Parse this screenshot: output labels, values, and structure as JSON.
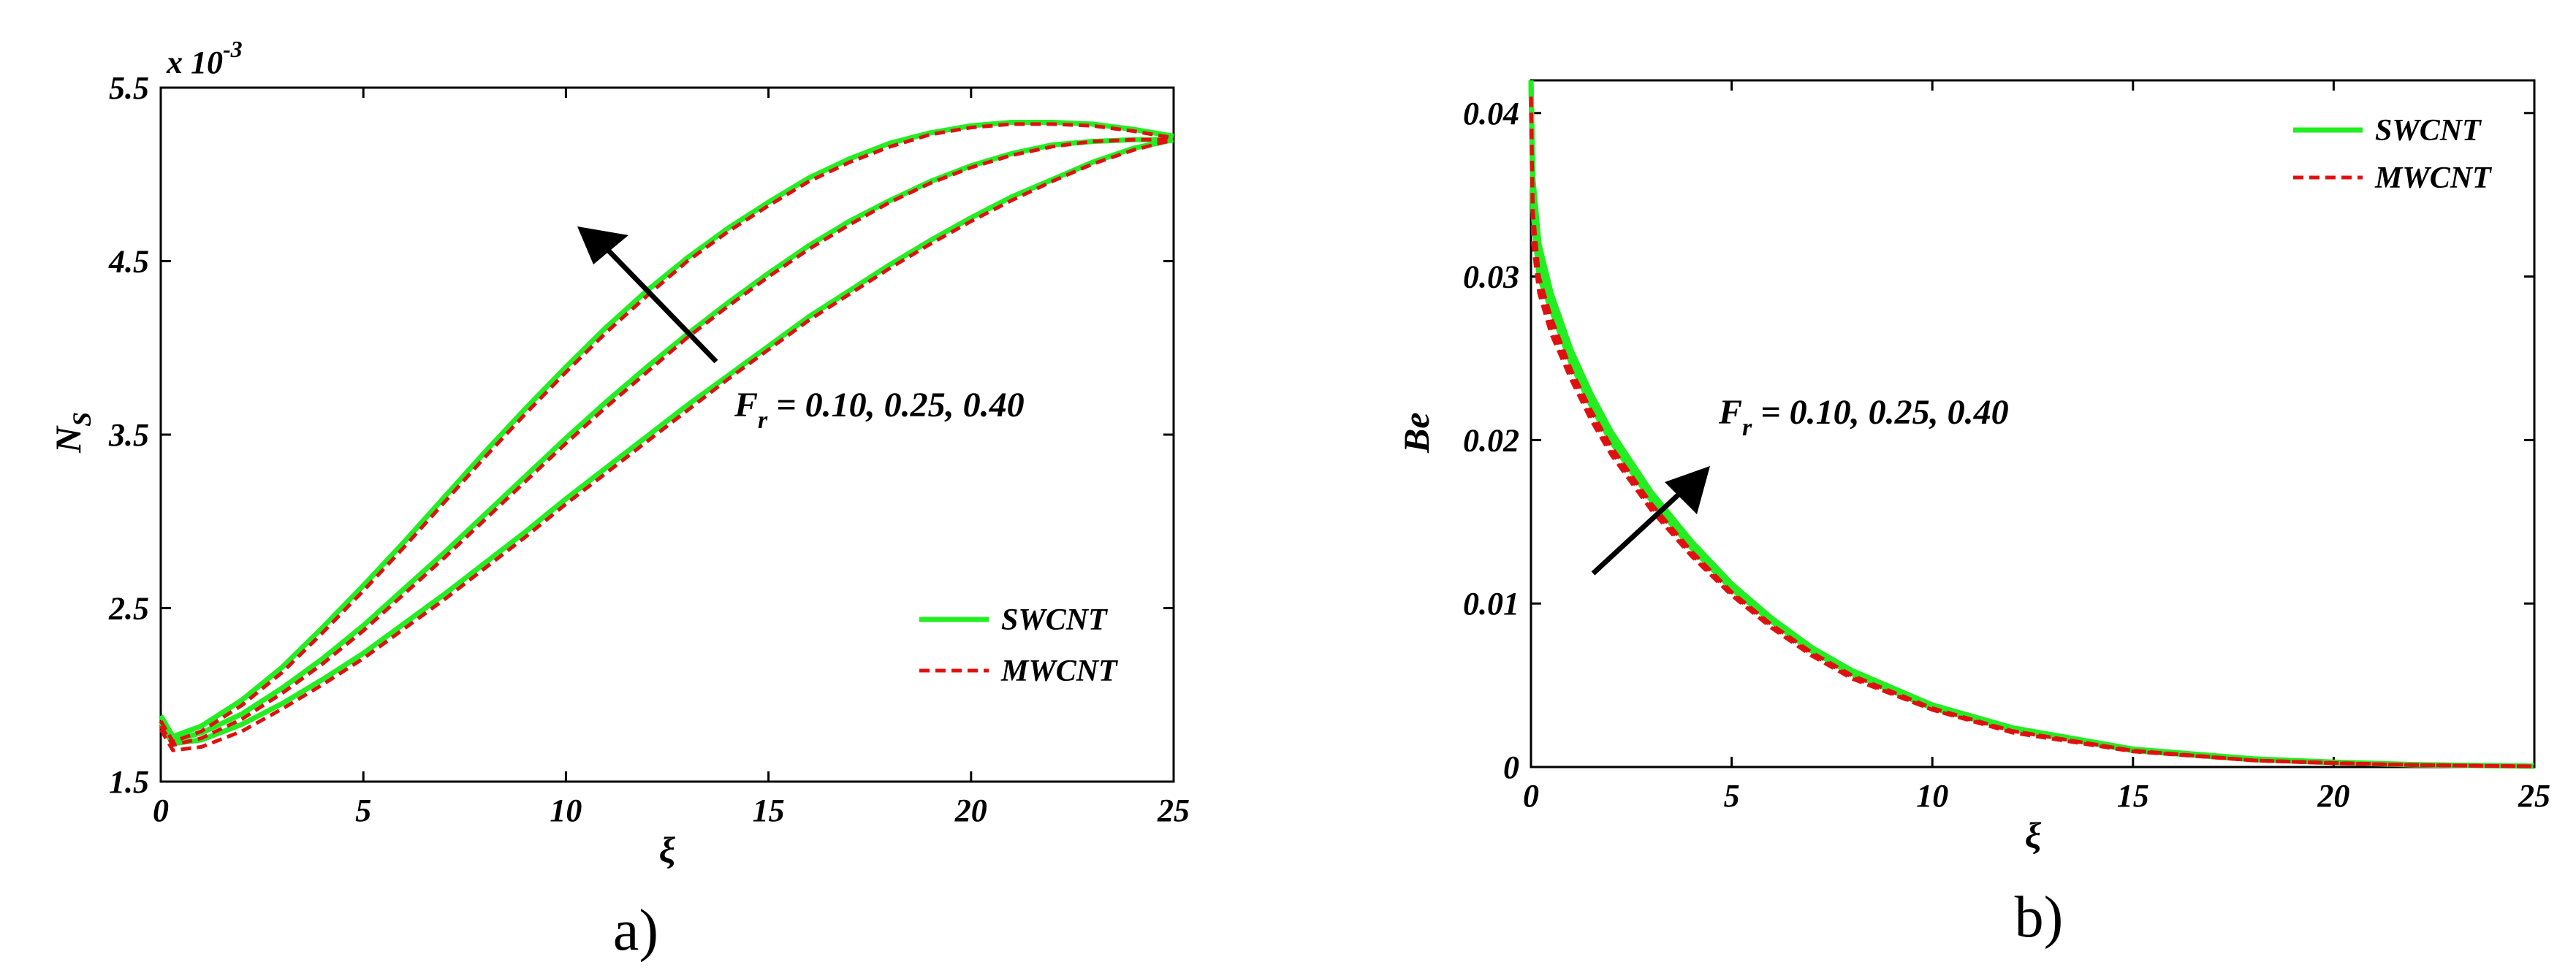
{
  "chart_data": [
    {
      "type": "line",
      "panel_label": "a)",
      "xlabel": "ξ",
      "ylabel_base": "N",
      "ylabel_sub": "S",
      "y_multiplier": "x 10",
      "y_multiplier_exp": "-3",
      "xlim": [
        0,
        25
      ],
      "ylim": [
        1.5,
        5.5
      ],
      "x_ticks": [
        0,
        5,
        10,
        15,
        20,
        25
      ],
      "x_tick_labels": [
        "0",
        "5",
        "10",
        "15",
        "20",
        "25"
      ],
      "y_ticks": [
        1.5,
        2.5,
        3.5,
        4.5,
        5.5
      ],
      "y_tick_labels": [
        "1.5",
        "2.5",
        "3.5",
        "4.5",
        "5.5"
      ],
      "grid": false,
      "legend_position": "bottom-right",
      "legend": [
        {
          "label": "SWCNT",
          "color": "#22ee22",
          "style": "solid"
        },
        {
          "label": "MWCNT",
          "color": "#e01010",
          "style": "dashed"
        }
      ],
      "annotation": {
        "base": "F",
        "sub": "r",
        "rest": " = 0.10, 0.25, 0.40"
      },
      "x": [
        0,
        0.3,
        1,
        2,
        3,
        4,
        5,
        6,
        7,
        8,
        9,
        10,
        11,
        12,
        13,
        14,
        15,
        16,
        17,
        18,
        19,
        20,
        21,
        22,
        23,
        24,
        25
      ],
      "series": [
        {
          "group": "Fr=0.10",
          "line": "SWCNT",
          "values": [
            1.83,
            1.72,
            1.74,
            1.83,
            1.95,
            2.09,
            2.24,
            2.41,
            2.58,
            2.76,
            2.94,
            3.13,
            3.31,
            3.49,
            3.67,
            3.84,
            4.01,
            4.18,
            4.33,
            4.48,
            4.62,
            4.75,
            4.87,
            4.97,
            5.07,
            5.15,
            5.2
          ]
        },
        {
          "group": "Fr=0.10",
          "line": "MWCNT",
          "values": [
            1.8,
            1.68,
            1.7,
            1.79,
            1.92,
            2.06,
            2.21,
            2.38,
            2.55,
            2.73,
            2.91,
            3.1,
            3.28,
            3.46,
            3.64,
            3.82,
            3.99,
            4.16,
            4.31,
            4.46,
            4.6,
            4.73,
            4.85,
            4.96,
            5.06,
            5.14,
            5.2
          ]
        },
        {
          "group": "Fr=0.25",
          "line": "SWCNT",
          "values": [
            1.85,
            1.74,
            1.78,
            1.89,
            2.04,
            2.21,
            2.4,
            2.61,
            2.82,
            3.04,
            3.26,
            3.48,
            3.69,
            3.89,
            4.08,
            4.26,
            4.43,
            4.59,
            4.73,
            4.85,
            4.96,
            5.05,
            5.12,
            5.17,
            5.19,
            5.2,
            5.2
          ]
        },
        {
          "group": "Fr=0.25",
          "line": "MWCNT",
          "values": [
            1.82,
            1.71,
            1.75,
            1.86,
            2.01,
            2.18,
            2.37,
            2.58,
            2.79,
            3.01,
            3.23,
            3.45,
            3.66,
            3.86,
            4.06,
            4.24,
            4.41,
            4.57,
            4.71,
            4.84,
            4.95,
            5.04,
            5.11,
            5.16,
            5.19,
            5.2,
            5.2
          ]
        },
        {
          "group": "Fr=0.40",
          "line": "SWCNT",
          "values": [
            1.88,
            1.76,
            1.82,
            1.97,
            2.16,
            2.39,
            2.63,
            2.88,
            3.14,
            3.4,
            3.65,
            3.89,
            4.12,
            4.33,
            4.52,
            4.69,
            4.84,
            4.98,
            5.09,
            5.18,
            5.24,
            5.28,
            5.3,
            5.3,
            5.29,
            5.26,
            5.22
          ]
        },
        {
          "group": "Fr=0.40",
          "line": "MWCNT",
          "values": [
            1.85,
            1.73,
            1.79,
            1.94,
            2.13,
            2.36,
            2.6,
            2.85,
            3.11,
            3.37,
            3.62,
            3.86,
            4.09,
            4.3,
            4.5,
            4.67,
            4.82,
            4.96,
            5.07,
            5.16,
            5.23,
            5.27,
            5.29,
            5.29,
            5.28,
            5.25,
            5.21
          ]
        }
      ]
    },
    {
      "type": "line",
      "panel_label": "b)",
      "xlabel": "ξ",
      "ylabel": "Be",
      "xlim": [
        0,
        25
      ],
      "ylim": [
        0,
        0.042
      ],
      "x_ticks": [
        0,
        5,
        10,
        15,
        20,
        25
      ],
      "x_tick_labels": [
        "0",
        "5",
        "10",
        "15",
        "20",
        "25"
      ],
      "y_ticks": [
        0,
        0.01,
        0.02,
        0.03,
        0.04
      ],
      "y_tick_labels": [
        "0",
        "0.01",
        "0.02",
        "0.03",
        "0.04"
      ],
      "grid": false,
      "legend_position": "top-right",
      "legend": [
        {
          "label": "SWCNT",
          "color": "#22ee22",
          "style": "solid"
        },
        {
          "label": "MWCNT",
          "color": "#e01010",
          "style": "dashed"
        }
      ],
      "annotation": {
        "base": "F",
        "sub": "r",
        "rest": " = 0.10, 0.25, 0.40"
      },
      "x": [
        0,
        0.05,
        0.2,
        0.5,
        1,
        1.5,
        2,
        3,
        4,
        5,
        6,
        7,
        8,
        10,
        12,
        15,
        18,
        20,
        22,
        25
      ],
      "series": [
        {
          "group": "Fr=0.10",
          "line": "SWCNT",
          "values": [
            0.042,
            0.036,
            0.032,
            0.029,
            0.0255,
            0.0228,
            0.0205,
            0.0168,
            0.0138,
            0.0112,
            0.0091,
            0.0073,
            0.0059,
            0.0038,
            0.0024,
            0.0011,
            0.0005,
            0.0003,
            0.00015,
            5e-05
          ]
        },
        {
          "group": "Fr=0.10",
          "line": "MWCNT",
          "values": [
            0.041,
            0.034,
            0.03,
            0.0275,
            0.0243,
            0.0218,
            0.0196,
            0.0161,
            0.0132,
            0.0107,
            0.0087,
            0.007,
            0.0056,
            0.0036,
            0.0022,
            0.001,
            0.0004,
            0.00025,
            0.00012,
            4e-05
          ]
        },
        {
          "group": "Fr=0.25",
          "line": "SWCNT",
          "values": [
            0.042,
            0.035,
            0.031,
            0.0285,
            0.0251,
            0.0224,
            0.0202,
            0.0165,
            0.0136,
            0.011,
            0.009,
            0.0072,
            0.0058,
            0.0037,
            0.0023,
            0.00105,
            0.00045,
            0.00028,
            0.00014,
            5e-05
          ]
        },
        {
          "group": "Fr=0.25",
          "line": "MWCNT",
          "values": [
            0.041,
            0.033,
            0.0295,
            0.027,
            0.024,
            0.0215,
            0.0193,
            0.0159,
            0.013,
            0.0106,
            0.0086,
            0.0069,
            0.0055,
            0.0035,
            0.0022,
            0.001,
            0.0004,
            0.00024,
            0.00012,
            4e-05
          ]
        },
        {
          "group": "Fr=0.40",
          "line": "SWCNT",
          "values": [
            0.042,
            0.034,
            0.03,
            0.028,
            0.0247,
            0.0221,
            0.0199,
            0.0163,
            0.0134,
            0.0109,
            0.0089,
            0.0071,
            0.0057,
            0.0036,
            0.0023,
            0.001,
            0.00045,
            0.00027,
            0.00013,
            5e-05
          ]
        },
        {
          "group": "Fr=0.40",
          "line": "MWCNT",
          "values": [
            0.041,
            0.032,
            0.029,
            0.0265,
            0.0237,
            0.0212,
            0.0191,
            0.0157,
            0.0129,
            0.0105,
            0.0085,
            0.0068,
            0.0054,
            0.0035,
            0.0021,
            0.00095,
            0.0004,
            0.00023,
            0.00011,
            4e-05
          ]
        }
      ]
    }
  ]
}
